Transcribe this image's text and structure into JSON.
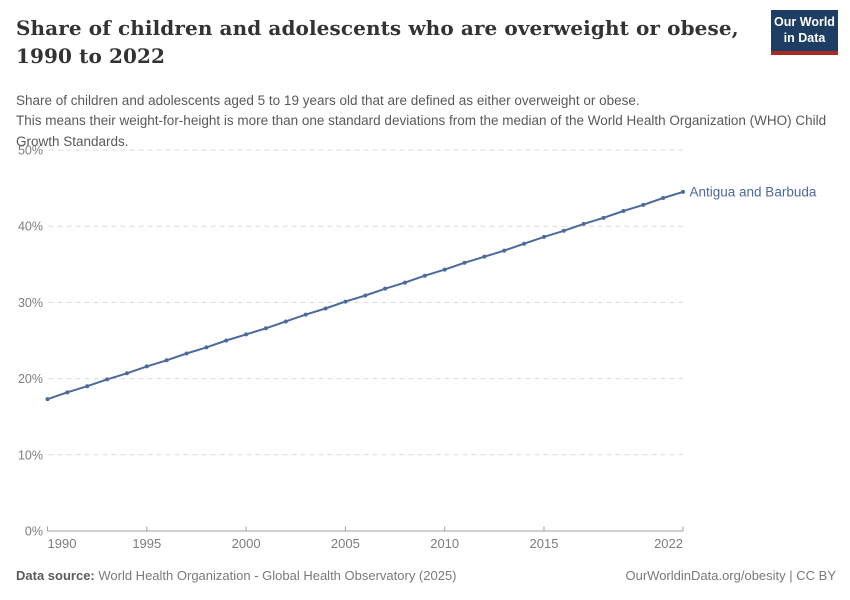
{
  "header": {
    "title": "Share of children and adolescents who are overweight or obese, 1990 to 2022",
    "logo": {
      "line1": "Our World",
      "line2": "in Data"
    }
  },
  "subtitle": {
    "line1": "Share of children and adolescents aged 5 to 19 years old that are defined as either overweight or obese.",
    "line2": "This means their weight-for-height is more than one standard deviations from the median of the World Health Organization (WHO) Child Growth Standards."
  },
  "footer": {
    "datasource_label": "Data source:",
    "datasource_value": " World Health Organization - Global Health Observatory (2025)",
    "rights": "OurWorldinData.org/obesity | CC BY"
  },
  "colors": {
    "series": "#4C6A9C",
    "grid": "#dcdcdc",
    "axis": "#a0a0a0",
    "tick_label": "#7d7d7d",
    "logo_bg": "#1d3d63",
    "logo_stripe": "#a82c26"
  },
  "chart_data": {
    "type": "line",
    "title": "Share of children and adolescents who are overweight or obese, 1990 to 2022",
    "xlabel": "",
    "ylabel": "",
    "grid": "horizontal-dashed",
    "legend_position": "end-of-line-label",
    "xlim": [
      1990,
      2022
    ],
    "ylim": [
      0,
      50
    ],
    "x_ticks": [
      1990,
      1995,
      2000,
      2005,
      2010,
      2015,
      2022
    ],
    "y_ticks": [
      0,
      10,
      20,
      30,
      40,
      50
    ],
    "y_tick_suffix": "%",
    "series": [
      {
        "name": "Antigua and Barbuda",
        "color": "#4C6A9C",
        "x": [
          1990,
          1991,
          1992,
          1993,
          1994,
          1995,
          1996,
          1997,
          1998,
          1999,
          2000,
          2001,
          2002,
          2003,
          2004,
          2005,
          2006,
          2007,
          2008,
          2009,
          2010,
          2011,
          2012,
          2013,
          2014,
          2015,
          2016,
          2017,
          2018,
          2019,
          2020,
          2021,
          2022
        ],
        "values": [
          17.3,
          18.2,
          19.0,
          19.9,
          20.7,
          21.6,
          22.4,
          23.3,
          24.1,
          25.0,
          25.8,
          26.6,
          27.5,
          28.4,
          29.2,
          30.1,
          30.9,
          31.8,
          32.6,
          33.5,
          34.3,
          35.2,
          36.0,
          36.8,
          37.7,
          38.6,
          39.4,
          40.3,
          41.1,
          42.0,
          42.8,
          43.7,
          44.5
        ]
      }
    ]
  }
}
